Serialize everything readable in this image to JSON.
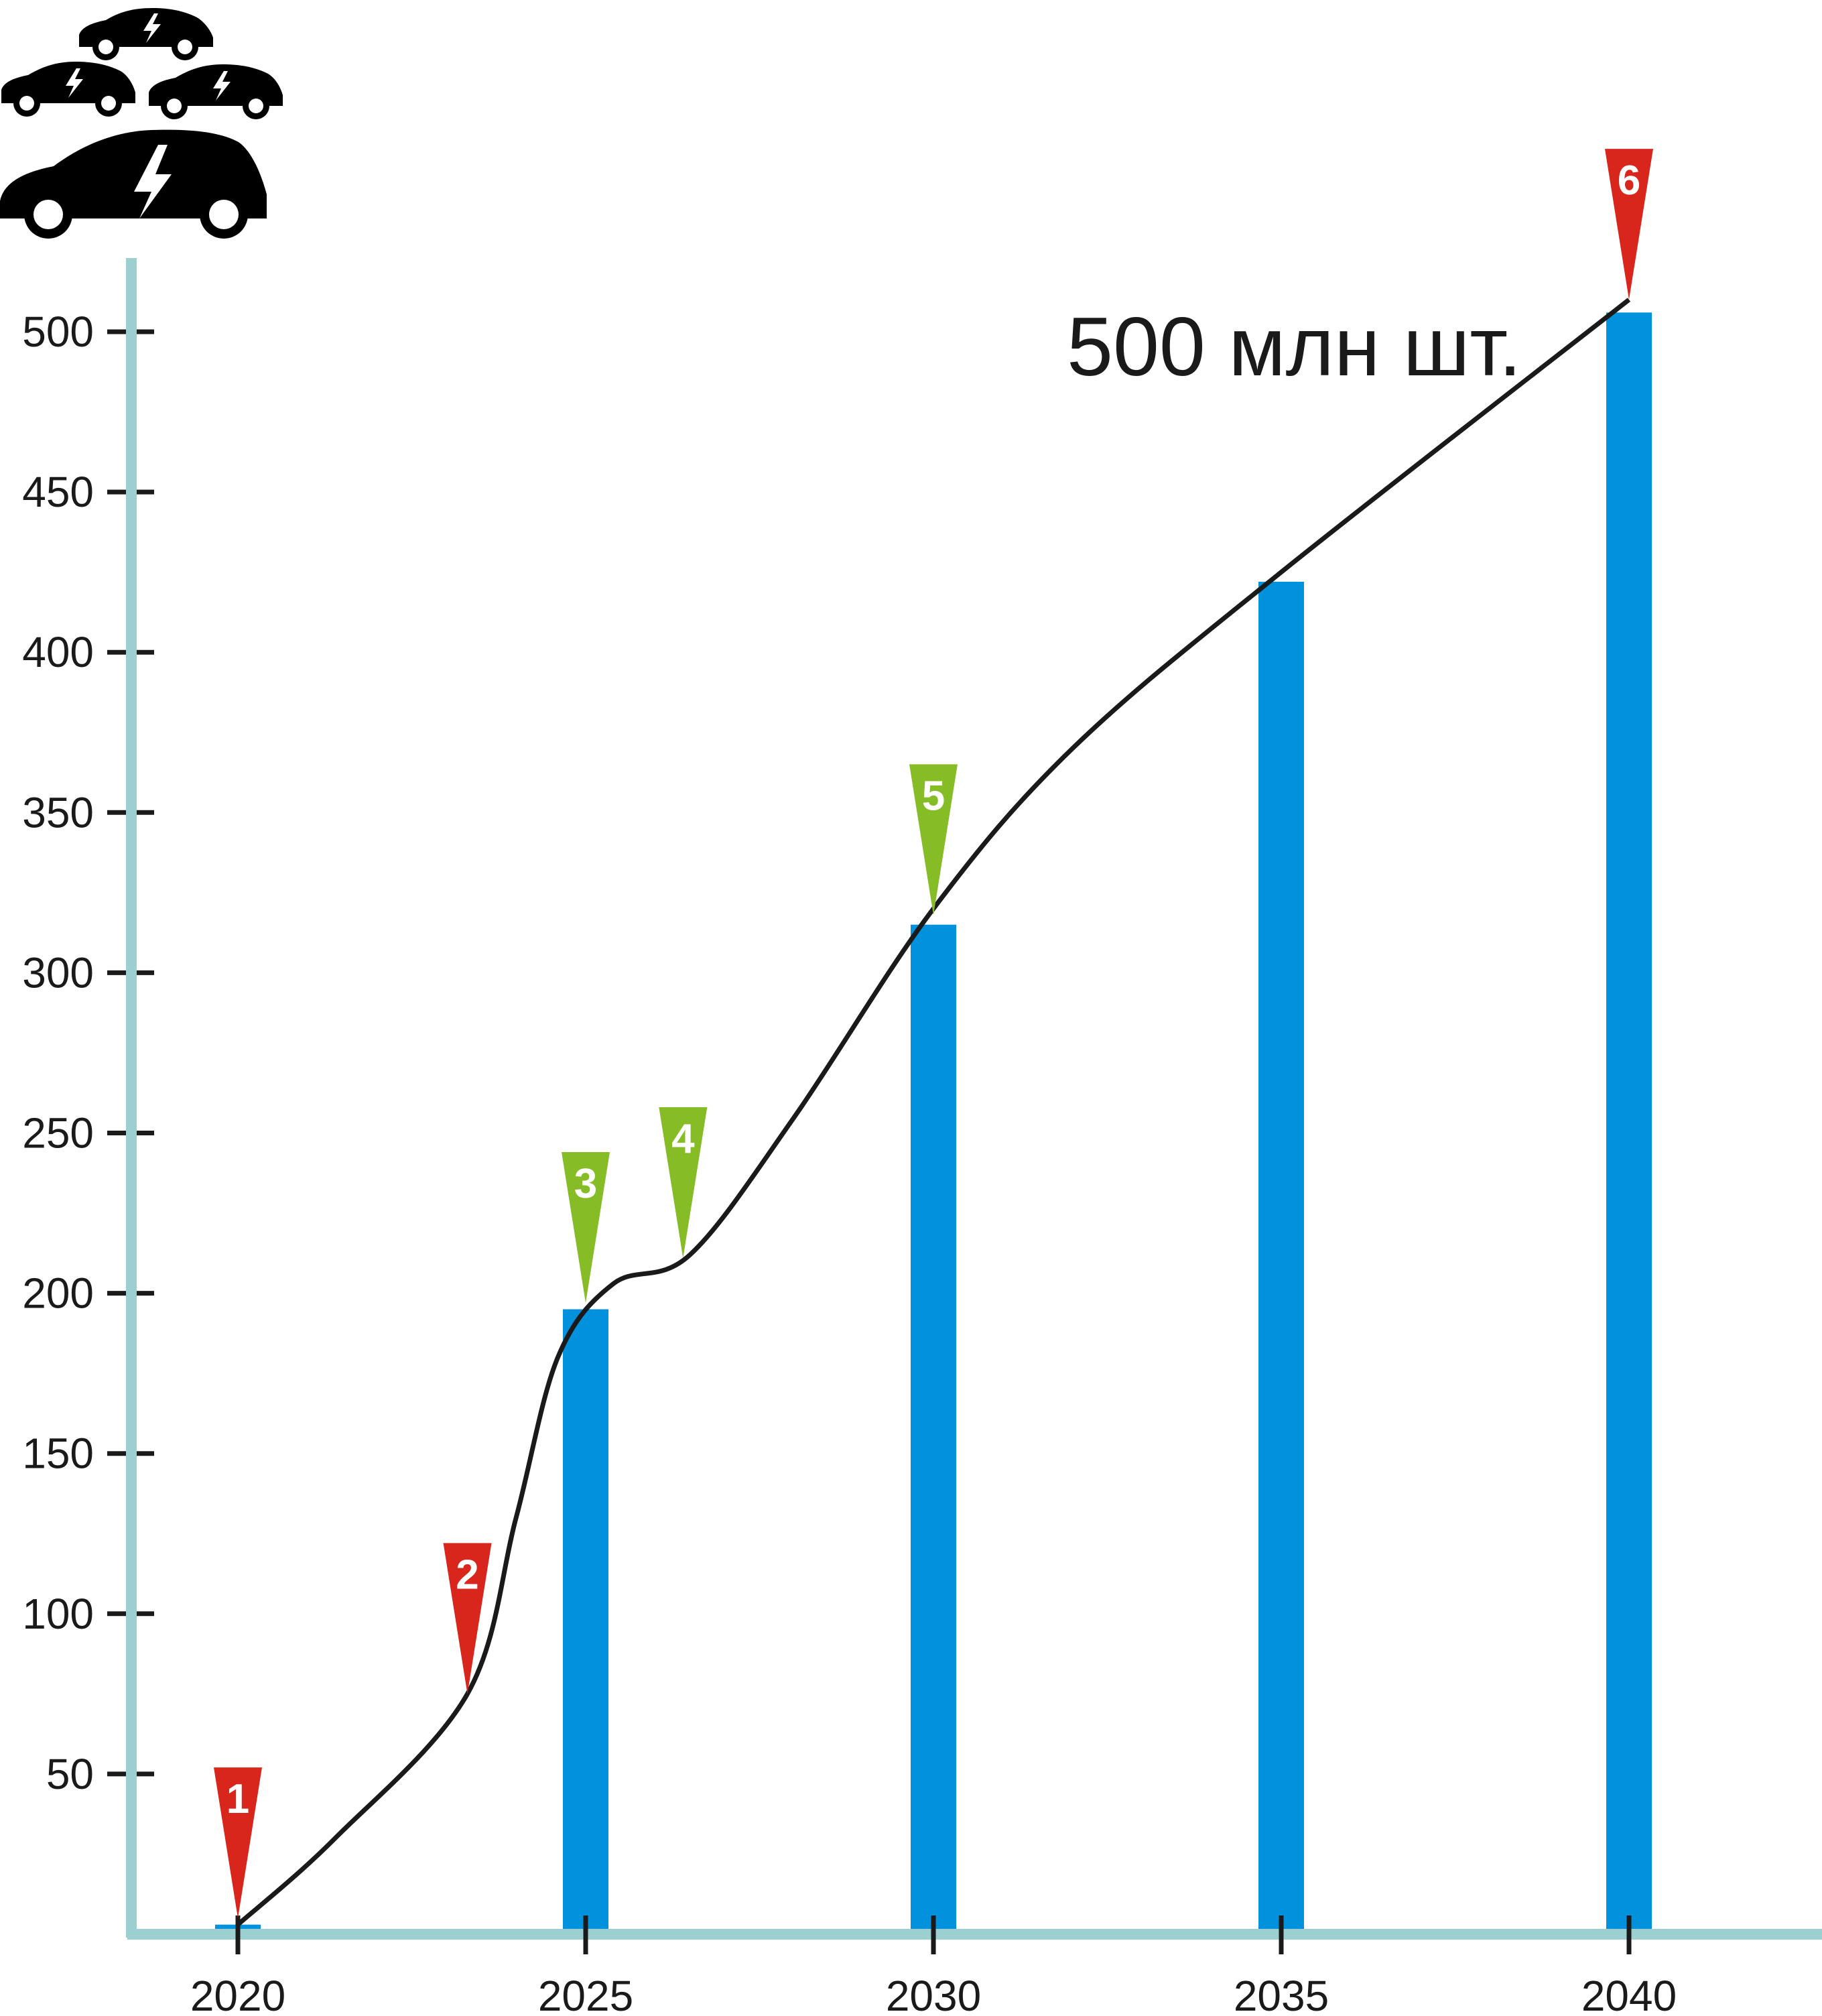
{
  "chart_data": {
    "type": "bar",
    "categories": [
      "2020",
      "2025",
      "2030",
      "2035",
      "2040"
    ],
    "values": [
      3,
      195,
      315,
      422,
      506
    ],
    "trend_line": [
      {
        "x": 2020.0,
        "y": 3
      },
      {
        "x": 2021.4,
        "y": 30
      },
      {
        "x": 2023.3,
        "y": 75
      },
      {
        "x": 2024.0,
        "y": 130
      },
      {
        "x": 2024.6,
        "y": 180
      },
      {
        "x": 2025.4,
        "y": 203
      },
      {
        "x": 2026.5,
        "y": 212
      },
      {
        "x": 2028.0,
        "y": 255
      },
      {
        "x": 2030.0,
        "y": 320
      },
      {
        "x": 2032.0,
        "y": 370
      },
      {
        "x": 2035.0,
        "y": 425
      },
      {
        "x": 2040.0,
        "y": 510
      }
    ],
    "markers": [
      {
        "label": "1",
        "x": 2020.0,
        "y": 5,
        "color": "#d9261c"
      },
      {
        "label": "2",
        "x": 2023.3,
        "y": 75,
        "color": "#d9261c"
      },
      {
        "label": "3",
        "x": 2025.0,
        "y": 197,
        "color": "#86bc25"
      },
      {
        "label": "4",
        "x": 2026.4,
        "y": 211,
        "color": "#86bc25"
      },
      {
        "label": "5",
        "x": 2030.0,
        "y": 318,
        "color": "#86bc25"
      },
      {
        "label": "6",
        "x": 2040.0,
        "y": 510,
        "color": "#d9261c"
      }
    ],
    "annotation": "500 млн шт.",
    "yticks": [
      50,
      100,
      150,
      200,
      250,
      300,
      350,
      400,
      450,
      500
    ],
    "xticks": [
      "2020",
      "2025",
      "2030",
      "2035",
      "2040"
    ],
    "ylim": [
      0,
      550
    ],
    "xlim": [
      2018.5,
      2042.5
    ],
    "title": "",
    "xlabel": "",
    "ylabel": "",
    "grid": false,
    "colors": {
      "bar": "#0291dc",
      "axis": "#9ccfd0",
      "line": "#1a1a1a",
      "tick": "#1a1a1a"
    }
  },
  "icons": {
    "header": "electric-cars-icon"
  }
}
